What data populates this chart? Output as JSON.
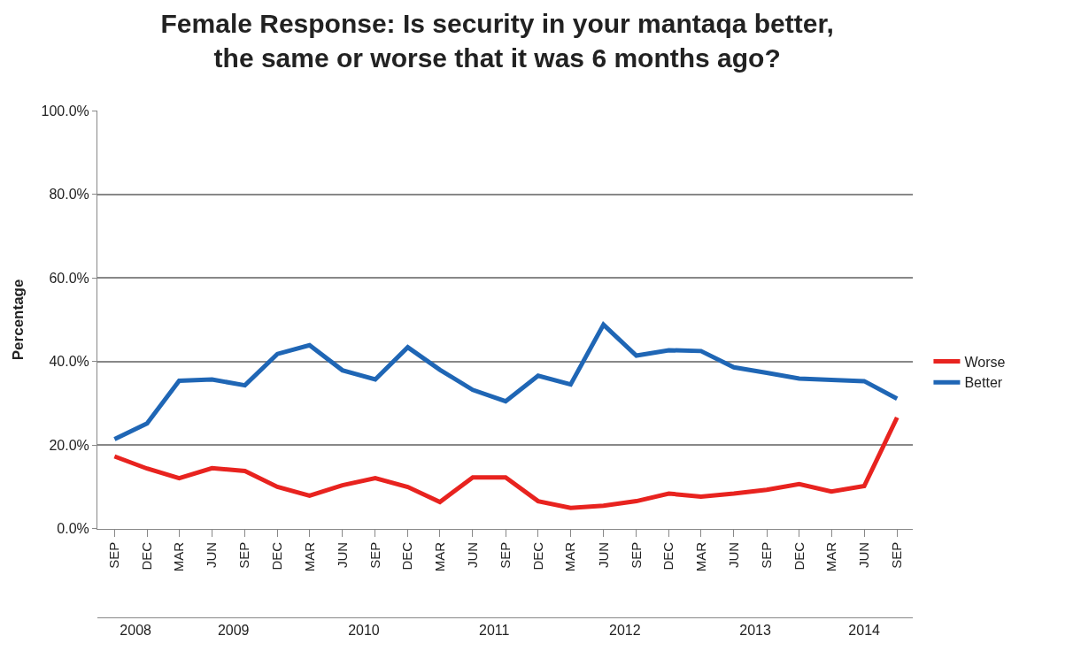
{
  "chart_data": {
    "type": "line",
    "title": "Female Response: Is security in your mantaqa better,\nthe same or worse that it was 6 months ago?",
    "ylabel": "Percentage",
    "x": [
      "2008-09",
      "2008-12",
      "2009-03",
      "2009-06",
      "2009-09",
      "2009-12",
      "2010-03",
      "2010-06",
      "2010-09",
      "2010-12",
      "2011-03",
      "2011-06",
      "2011-09",
      "2011-12",
      "2012-03",
      "2012-06",
      "2012-09",
      "2012-12",
      "2013-03",
      "2013-06",
      "2013-09",
      "2013-12",
      "2014-03",
      "2014-06",
      "2014-09"
    ],
    "series": [
      {
        "name": "Worse",
        "color": "#e8231f",
        "values": [
          17.3,
          14.4,
          12.1,
          14.5,
          13.8,
          10.0,
          7.9,
          10.4,
          12.1,
          10.0,
          6.4,
          12.3,
          12.3,
          6.6,
          5.0,
          5.5,
          6.6,
          8.4,
          7.7,
          8.4,
          9.3,
          10.7,
          8.9,
          10.2,
          26.6
        ]
      },
      {
        "name": "Better",
        "color": "#1f66b5",
        "values": [
          21.4,
          25.2,
          35.4,
          35.7,
          34.3,
          41.8,
          43.9,
          37.9,
          35.7,
          43.4,
          38.0,
          33.2,
          30.5,
          36.6,
          34.5,
          48.8,
          41.4,
          42.7,
          42.5,
          38.6,
          37.3,
          35.9,
          35.6,
          35.3,
          31.1
        ]
      }
    ],
    "xlim": [
      "2008-07-15",
      "2014-10-15"
    ],
    "xticks": [
      {
        "value": "2008-09",
        "label": "SEP"
      },
      {
        "value": "2008-12",
        "label": "DEC"
      },
      {
        "value": "2009-03",
        "label": "MAR"
      },
      {
        "value": "2009-06",
        "label": "JUN"
      },
      {
        "value": "2009-09",
        "label": "SEP"
      },
      {
        "value": "2009-12",
        "label": "DEC"
      },
      {
        "value": "2010-03",
        "label": "MAR"
      },
      {
        "value": "2010-06",
        "label": "JUN"
      },
      {
        "value": "2010-09",
        "label": "SEP"
      },
      {
        "value": "2010-12",
        "label": "DEC"
      },
      {
        "value": "2011-03",
        "label": "MAR"
      },
      {
        "value": "2011-06",
        "label": "JUN"
      },
      {
        "value": "2011-09",
        "label": "SEP"
      },
      {
        "value": "2011-12",
        "label": "DEC"
      },
      {
        "value": "2012-03",
        "label": "MAR"
      },
      {
        "value": "2012-06",
        "label": "JUN"
      },
      {
        "value": "2012-09",
        "label": "SEP"
      },
      {
        "value": "2012-12",
        "label": "DEC"
      },
      {
        "value": "2013-03",
        "label": "MAR"
      },
      {
        "value": "2013-06",
        "label": "JUN"
      },
      {
        "value": "2013-09",
        "label": "SEP"
      },
      {
        "value": "2013-12",
        "label": "DEC"
      },
      {
        "value": "2014-03",
        "label": "MAR"
      },
      {
        "value": "2014-06",
        "label": "JUN"
      },
      {
        "value": "2014-09",
        "label": "SEP"
      }
    ],
    "x2lim": [
      "2008-07-15",
      "2014-10-15"
    ],
    "x2ticks": [
      {
        "value": "2008-10-30",
        "label": "2008"
      },
      {
        "value": "2009-07-31",
        "label": "2009"
      },
      {
        "value": "2010-07-31",
        "label": "2010"
      },
      {
        "value": "2011-07-31",
        "label": "2011"
      },
      {
        "value": "2012-07-31",
        "label": "2012"
      },
      {
        "value": "2013-07-31",
        "label": "2013"
      },
      {
        "value": "2014-06-01",
        "label": "2014"
      }
    ],
    "ylim": [
      0,
      100
    ],
    "yticks": [
      {
        "value": 0,
        "label": "0.0%"
      },
      {
        "value": 20,
        "label": "20.0%"
      },
      {
        "value": 40,
        "label": "40.0%"
      },
      {
        "value": 60,
        "label": "60.0%"
      },
      {
        "value": 80,
        "label": "80.0%"
      },
      {
        "value": 100,
        "label": "100.0%"
      }
    ],
    "grid": "y",
    "legend": "right",
    "marker": "none",
    "line_style": "solid"
  }
}
